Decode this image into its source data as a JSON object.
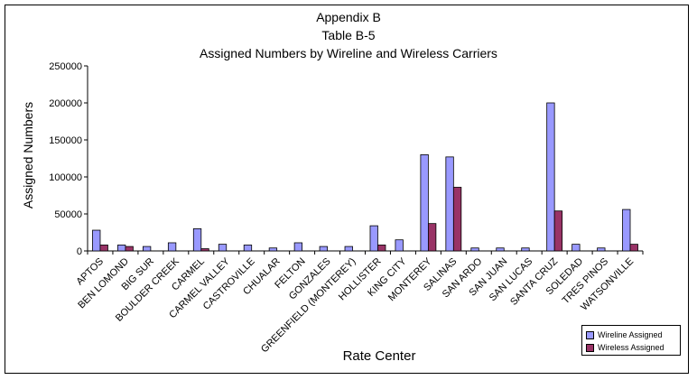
{
  "chart_data": {
    "type": "bar",
    "title_lines": [
      "Appendix B",
      "Table B-5",
      "Assigned Numbers by Wireline and Wireless Carriers"
    ],
    "xlabel": "Rate Center",
    "ylabel": "Assigned Numbers",
    "ylim": [
      0,
      250000
    ],
    "yticks": [
      0,
      50000,
      100000,
      150000,
      200000,
      250000
    ],
    "ytick_labels": [
      "0",
      "50000",
      "100000",
      "150000",
      "200000",
      "250000"
    ],
    "grid": false,
    "legend_position": "bottom-right",
    "categories": [
      "APTOS",
      "BEN LOMOND",
      "BIG SUR",
      "BOULDER CREEK",
      "CARMEL",
      "CARMEL VALLEY",
      "CASTROVILLE",
      "CHUALAR",
      "FELTON",
      "GONZALES",
      "GREENFIELD (MONTEREY)",
      "HOLLISTER",
      "KING CITY",
      "MONTEREY",
      "SALINAS",
      "SAN ARDO",
      "SAN JUAN",
      "SAN LUCAS",
      "SANTA CRUZ",
      "SOLEDAD",
      "TRES PINOS",
      "WATSONVILLE"
    ],
    "series": [
      {
        "name": "Wireline Assigned",
        "color": "#9999ff",
        "values": [
          28000,
          8000,
          6000,
          11000,
          30000,
          9000,
          8000,
          4000,
          11000,
          6000,
          6000,
          34000,
          15000,
          130000,
          127000,
          4000,
          4000,
          4000,
          200000,
          9000,
          4000,
          56000
        ]
      },
      {
        "name": "Wireless Assigned",
        "color": "#993366",
        "values": [
          8000,
          6000,
          0,
          0,
          3000,
          0,
          0,
          0,
          0,
          0,
          0,
          8000,
          0,
          37000,
          86000,
          0,
          0,
          0,
          54000,
          0,
          0,
          9000
        ]
      }
    ]
  }
}
